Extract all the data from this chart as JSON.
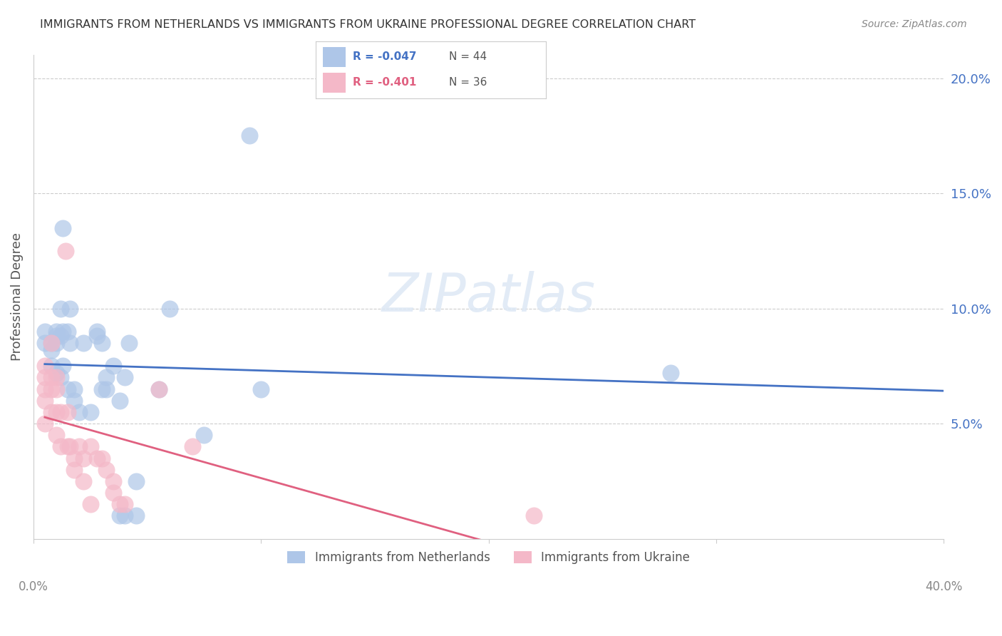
{
  "title": "IMMIGRANTS FROM NETHERLANDS VS IMMIGRANTS FROM UKRAINE PROFESSIONAL DEGREE CORRELATION CHART",
  "source": "Source: ZipAtlas.com",
  "ylabel": "Professional Degree",
  "xlabel": "",
  "xlim": [
    0.0,
    0.4
  ],
  "ylim": [
    0.0,
    0.21
  ],
  "xticks": [
    0.0,
    0.1,
    0.2,
    0.3,
    0.4
  ],
  "yticks_right": [
    0.05,
    0.1,
    0.15,
    0.2
  ],
  "grid_color": "#cccccc",
  "background_color": "#ffffff",
  "netherlands_color": "#aec6e8",
  "ukraine_color": "#f4b8c8",
  "netherlands_line_color": "#4472c4",
  "ukraine_line_color": "#e06080",
  "netherlands_label": "Immigrants from Netherlands",
  "ukraine_label": "Immigrants from Ukraine",
  "netherlands_R": "-0.047",
  "netherlands_N": "44",
  "ukraine_R": "-0.401",
  "ukraine_N": "36",
  "title_color": "#333333",
  "right_axis_color": "#4472c4",
  "netherlands_x": [
    0.005,
    0.005,
    0.008,
    0.008,
    0.008,
    0.01,
    0.01,
    0.01,
    0.01,
    0.012,
    0.012,
    0.012,
    0.013,
    0.013,
    0.013,
    0.015,
    0.015,
    0.016,
    0.016,
    0.018,
    0.018,
    0.02,
    0.022,
    0.025,
    0.028,
    0.028,
    0.03,
    0.03,
    0.032,
    0.032,
    0.035,
    0.038,
    0.038,
    0.04,
    0.04,
    0.042,
    0.045,
    0.045,
    0.055,
    0.06,
    0.075,
    0.095,
    0.1,
    0.28
  ],
  "netherlands_y": [
    0.09,
    0.085,
    0.085,
    0.082,
    0.075,
    0.09,
    0.088,
    0.085,
    0.072,
    0.1,
    0.088,
    0.07,
    0.135,
    0.09,
    0.075,
    0.09,
    0.065,
    0.1,
    0.085,
    0.065,
    0.06,
    0.055,
    0.085,
    0.055,
    0.09,
    0.088,
    0.085,
    0.065,
    0.07,
    0.065,
    0.075,
    0.06,
    0.01,
    0.07,
    0.01,
    0.085,
    0.025,
    0.01,
    0.065,
    0.1,
    0.045,
    0.175,
    0.065,
    0.072
  ],
  "ukraine_x": [
    0.005,
    0.005,
    0.005,
    0.008,
    0.008,
    0.008,
    0.01,
    0.01,
    0.01,
    0.012,
    0.012,
    0.014,
    0.015,
    0.015,
    0.016,
    0.018,
    0.018,
    0.02,
    0.022,
    0.022,
    0.025,
    0.025,
    0.028,
    0.03,
    0.032,
    0.035,
    0.035,
    0.038,
    0.04,
    0.055,
    0.07,
    0.22,
    0.005,
    0.005,
    0.008,
    0.01
  ],
  "ukraine_y": [
    0.075,
    0.07,
    0.065,
    0.085,
    0.065,
    0.055,
    0.065,
    0.055,
    0.045,
    0.055,
    0.04,
    0.125,
    0.055,
    0.04,
    0.04,
    0.035,
    0.03,
    0.04,
    0.035,
    0.025,
    0.04,
    0.015,
    0.035,
    0.035,
    0.03,
    0.025,
    0.02,
    0.015,
    0.015,
    0.065,
    0.04,
    0.01,
    0.06,
    0.05,
    0.07,
    0.07
  ]
}
